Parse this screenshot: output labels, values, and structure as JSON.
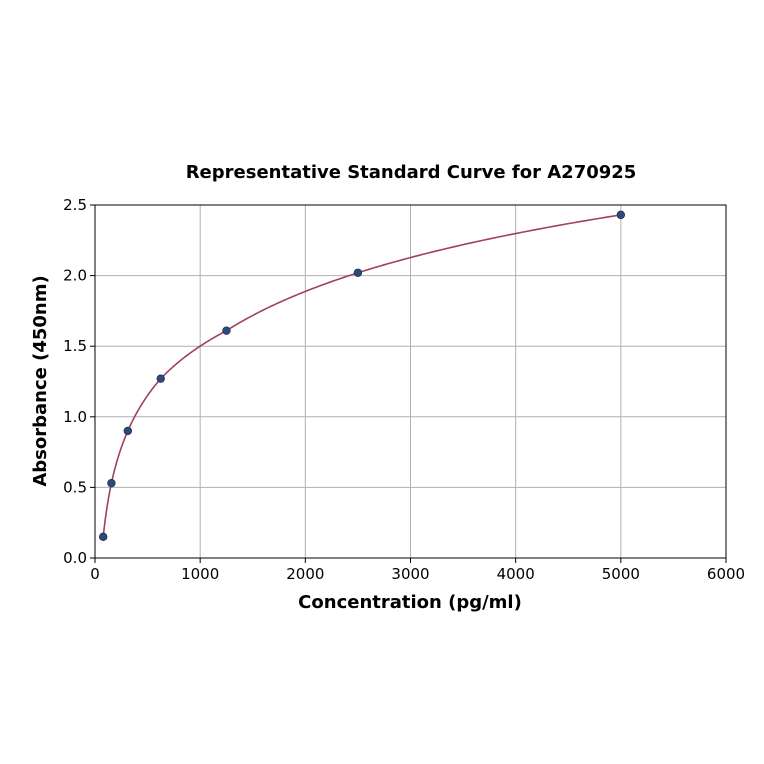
{
  "chart_data": {
    "type": "scatter",
    "title": "Representative Standard Curve for A270925",
    "xlabel": "Concentration (pg/ml)",
    "ylabel": "Absorbance (450nm)",
    "xlim": [
      0,
      6000
    ],
    "ylim": [
      0,
      2.5
    ],
    "xticks": [
      0,
      1000,
      2000,
      3000,
      4000,
      5000,
      6000
    ],
    "yticks": [
      0.0,
      0.5,
      1.0,
      1.5,
      2.0,
      2.5
    ],
    "xtick_labels": [
      "0",
      "1000",
      "2000",
      "3000",
      "4000",
      "5000",
      "6000"
    ],
    "ytick_labels": [
      "0.0",
      "0.5",
      "1.0",
      "1.5",
      "2.0",
      "2.5"
    ],
    "grid": true,
    "series": [
      {
        "points": [
          {
            "x": 78,
            "y": 0.15
          },
          {
            "x": 156,
            "y": 0.53
          },
          {
            "x": 312,
            "y": 0.9
          },
          {
            "x": 625,
            "y": 1.27
          },
          {
            "x": 1250,
            "y": 1.61
          },
          {
            "x": 2500,
            "y": 2.02
          },
          {
            "x": 5000,
            "y": 2.43
          }
        ],
        "marker_color": "#2e4a7a"
      }
    ],
    "fit_curve": {
      "color": "#a0415f",
      "x_range": [
        78,
        5000
      ]
    }
  }
}
